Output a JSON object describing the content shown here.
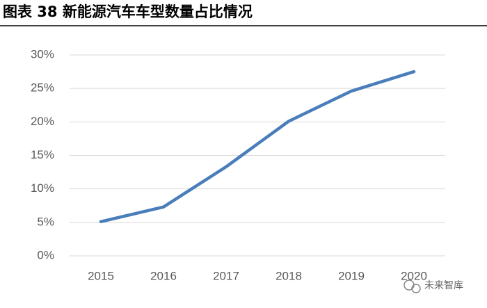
{
  "chart_data": {
    "type": "line",
    "title": "图表 38 新能源汽车车型数量占比情况",
    "categories": [
      "2015",
      "2016",
      "2017",
      "2018",
      "2019",
      "2020"
    ],
    "series": [
      {
        "name": "新能源汽车车型数量占比",
        "color": "#4a7ebb",
        "values": [
          5.1,
          7.3,
          13.3,
          20.1,
          24.6,
          27.5
        ]
      }
    ],
    "ylim": [
      0,
      30
    ],
    "yticks": [
      {
        "value": 0,
        "label": "0%"
      },
      {
        "value": 5,
        "label": "5%"
      },
      {
        "value": 10,
        "label": "10%"
      },
      {
        "value": 15,
        "label": "15%"
      },
      {
        "value": 20,
        "label": "20%"
      },
      {
        "value": 25,
        "label": "25%"
      },
      {
        "value": 30,
        "label": "30%"
      }
    ],
    "grid": true,
    "legend": false
  },
  "watermark": "未来智库"
}
